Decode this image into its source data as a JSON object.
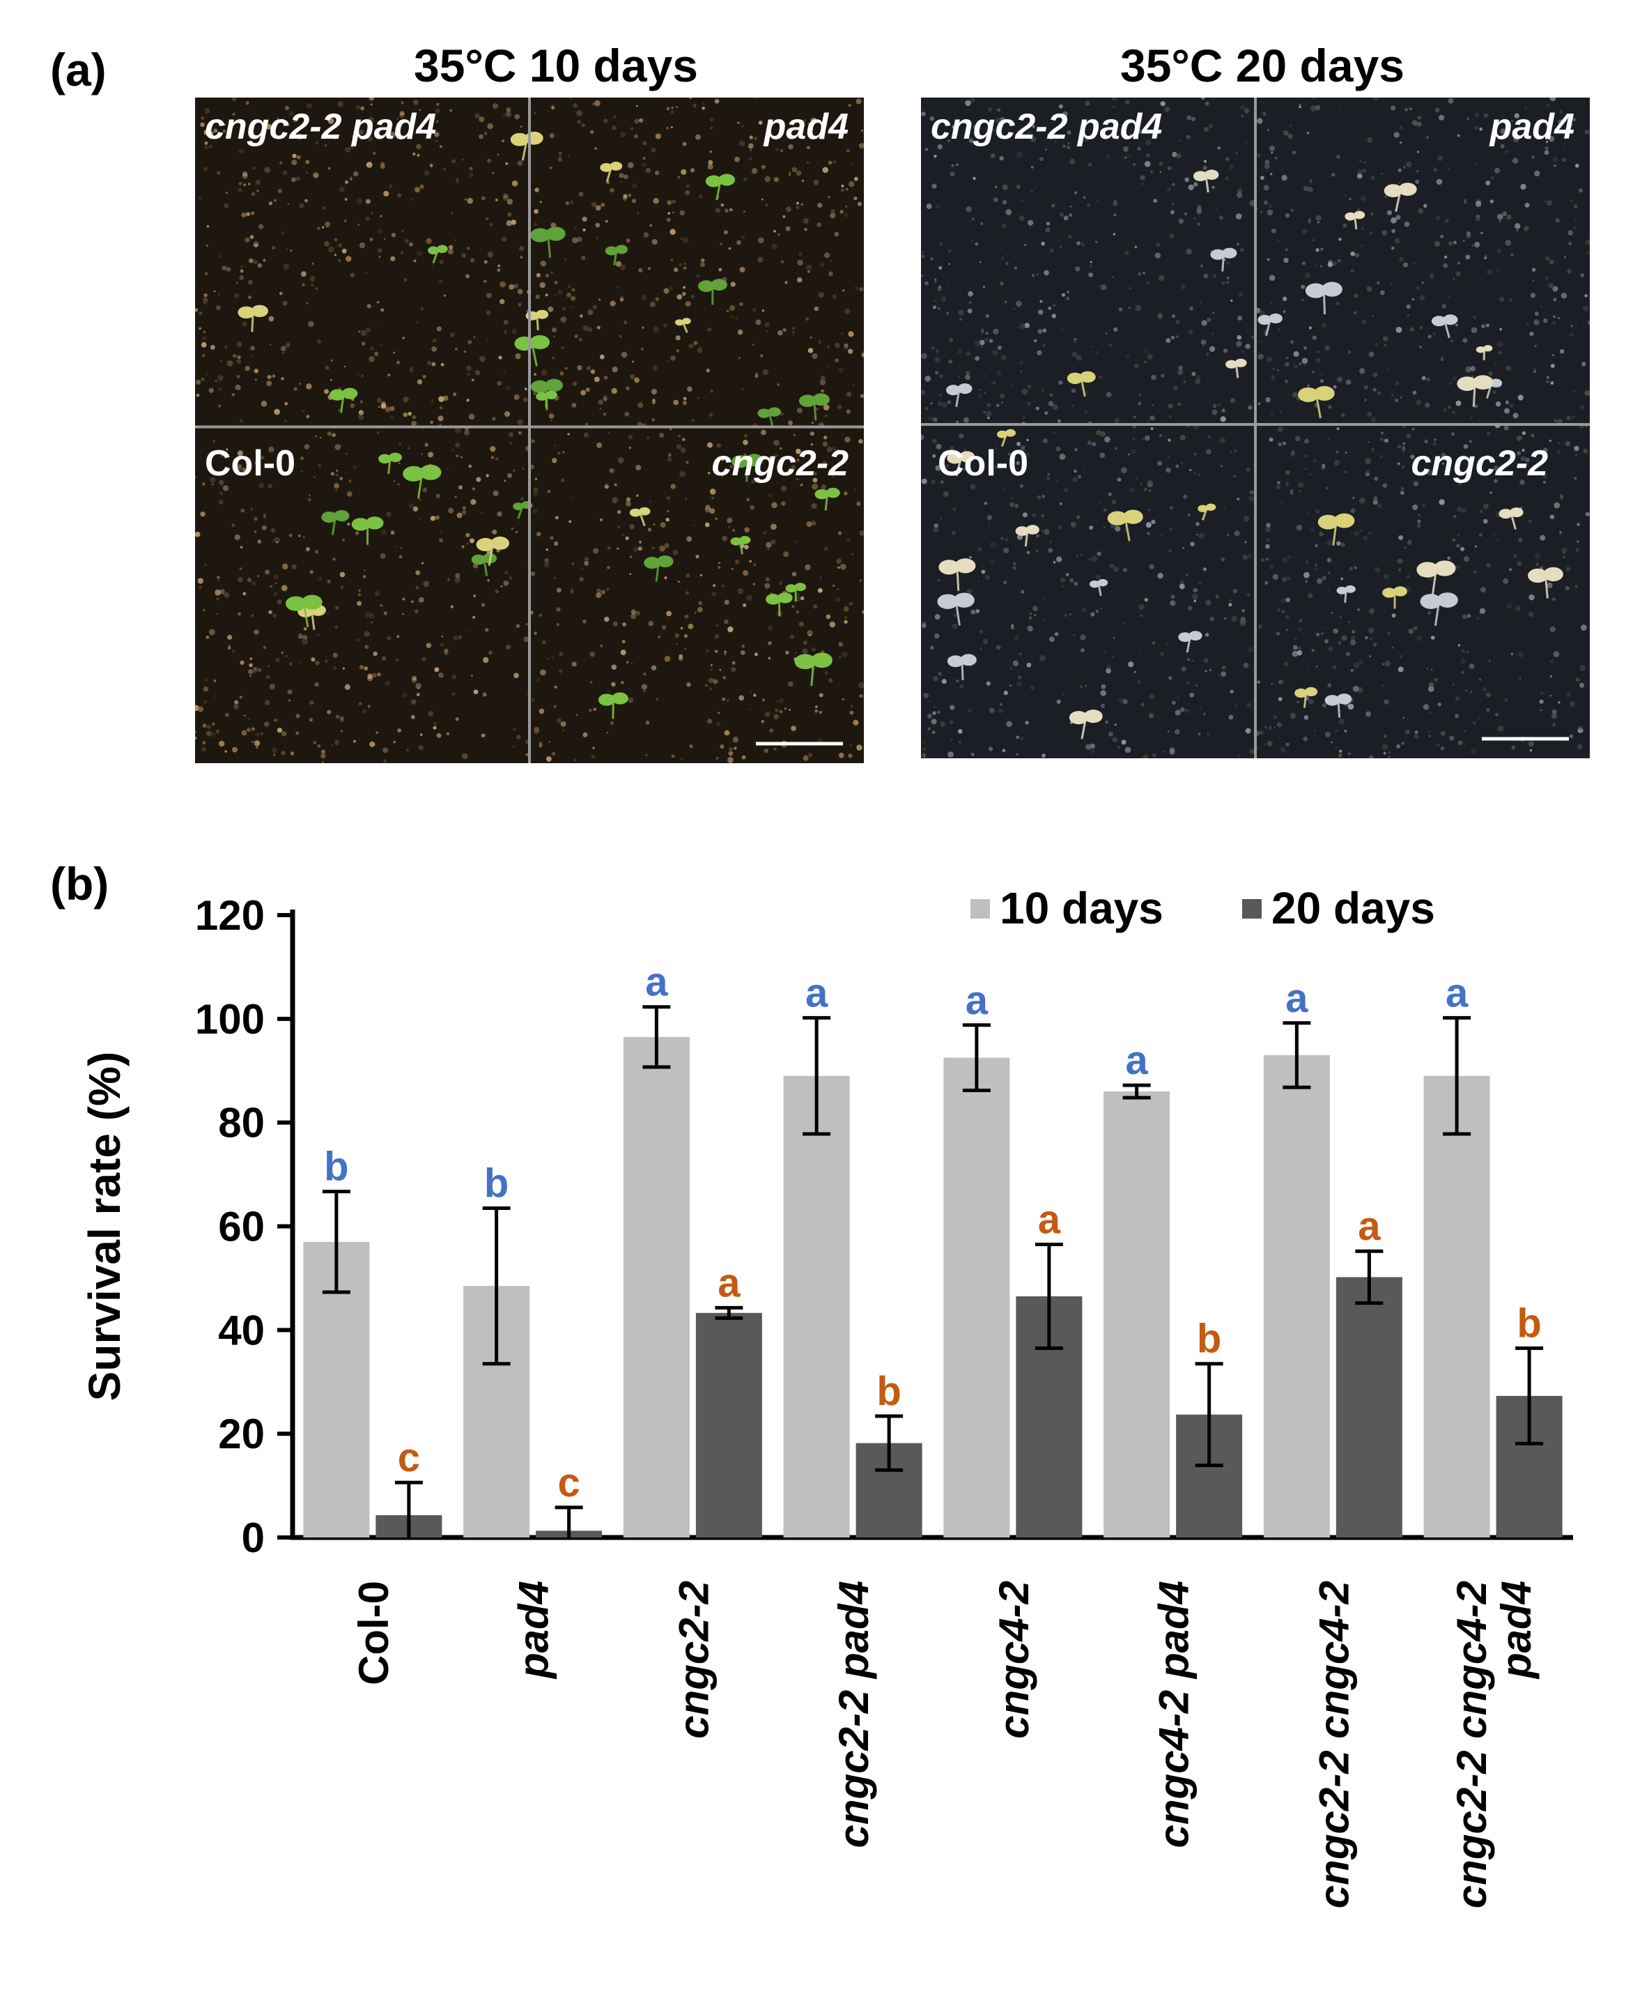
{
  "panel_a": {
    "label": "(a)",
    "photos": [
      {
        "title": "35°C 10 days",
        "quadrants": [
          {
            "label": "cngc2-2 pad4",
            "italic": true
          },
          {
            "label": "pad4",
            "italic": true
          },
          {
            "label": "Col-0",
            "italic": false
          },
          {
            "label": "cngc2-2",
            "italic": true
          }
        ]
      },
      {
        "title": "35°C 20 days",
        "quadrants": [
          {
            "label": "cngc2-2 pad4",
            "italic": true
          },
          {
            "label": "pad4",
            "italic": true
          },
          {
            "label": "Col-0",
            "italic": false
          },
          {
            "label": "cngc2-2",
            "italic": true
          }
        ]
      }
    ],
    "colors": {
      "soil_10d": "#1e1710",
      "soil_20d": "#1b1e24",
      "grid_line": "#9a9a9a",
      "seedling_green": "#7cc242",
      "seedling_yellow": "#d9d27a",
      "seedling_pale": "#e6dcc0"
    }
  },
  "panel_b": {
    "label": "(b)"
  },
  "chart_data": {
    "type": "bar",
    "title": "",
    "xlabel": "",
    "ylabel": "Survival rate (%)",
    "ylim": [
      0,
      120
    ],
    "yticks": [
      0,
      20,
      40,
      60,
      80,
      100,
      120
    ],
    "grid": false,
    "legend_position": "top-right",
    "categories": [
      {
        "lines": [
          "Col-0"
        ],
        "italic": false
      },
      {
        "lines": [
          "pad4"
        ],
        "italic": true
      },
      {
        "lines": [
          "cngc2-2"
        ],
        "italic": true
      },
      {
        "lines": [
          "cngc2-2 pad4"
        ],
        "italic": true
      },
      {
        "lines": [
          "cngc4-2"
        ],
        "italic": true
      },
      {
        "lines": [
          "cngc4-2 pad4"
        ],
        "italic": true
      },
      {
        "lines": [
          "cngc2-2 cngc4-2"
        ],
        "italic": true
      },
      {
        "lines": [
          "cngc2-2 cngc4-2",
          "pad4"
        ],
        "italic": true
      }
    ],
    "series": [
      {
        "name": "10 days",
        "color": "#bfbfbf",
        "letter_color": "#4472c4",
        "values": [
          57,
          48.5,
          96.5,
          89,
          92.5,
          86,
          93,
          89
        ],
        "errors": [
          9.7,
          15,
          5.8,
          11.2,
          6.3,
          1.2,
          6.2,
          11.2
        ],
        "letters": [
          "b",
          "b",
          "a",
          "a",
          "a",
          "a",
          "a",
          "a"
        ]
      },
      {
        "name": "20 days",
        "color": "#595959",
        "letter_color": "#c55a11",
        "values": [
          4.3,
          1.3,
          43.3,
          18.2,
          46.5,
          23.7,
          50.2,
          27.3
        ],
        "errors": [
          6.3,
          4.5,
          1,
          5.2,
          10,
          9.8,
          5,
          9.2
        ],
        "letters": [
          "c",
          "c",
          "a",
          "b",
          "a",
          "b",
          "a",
          "b"
        ]
      }
    ]
  }
}
